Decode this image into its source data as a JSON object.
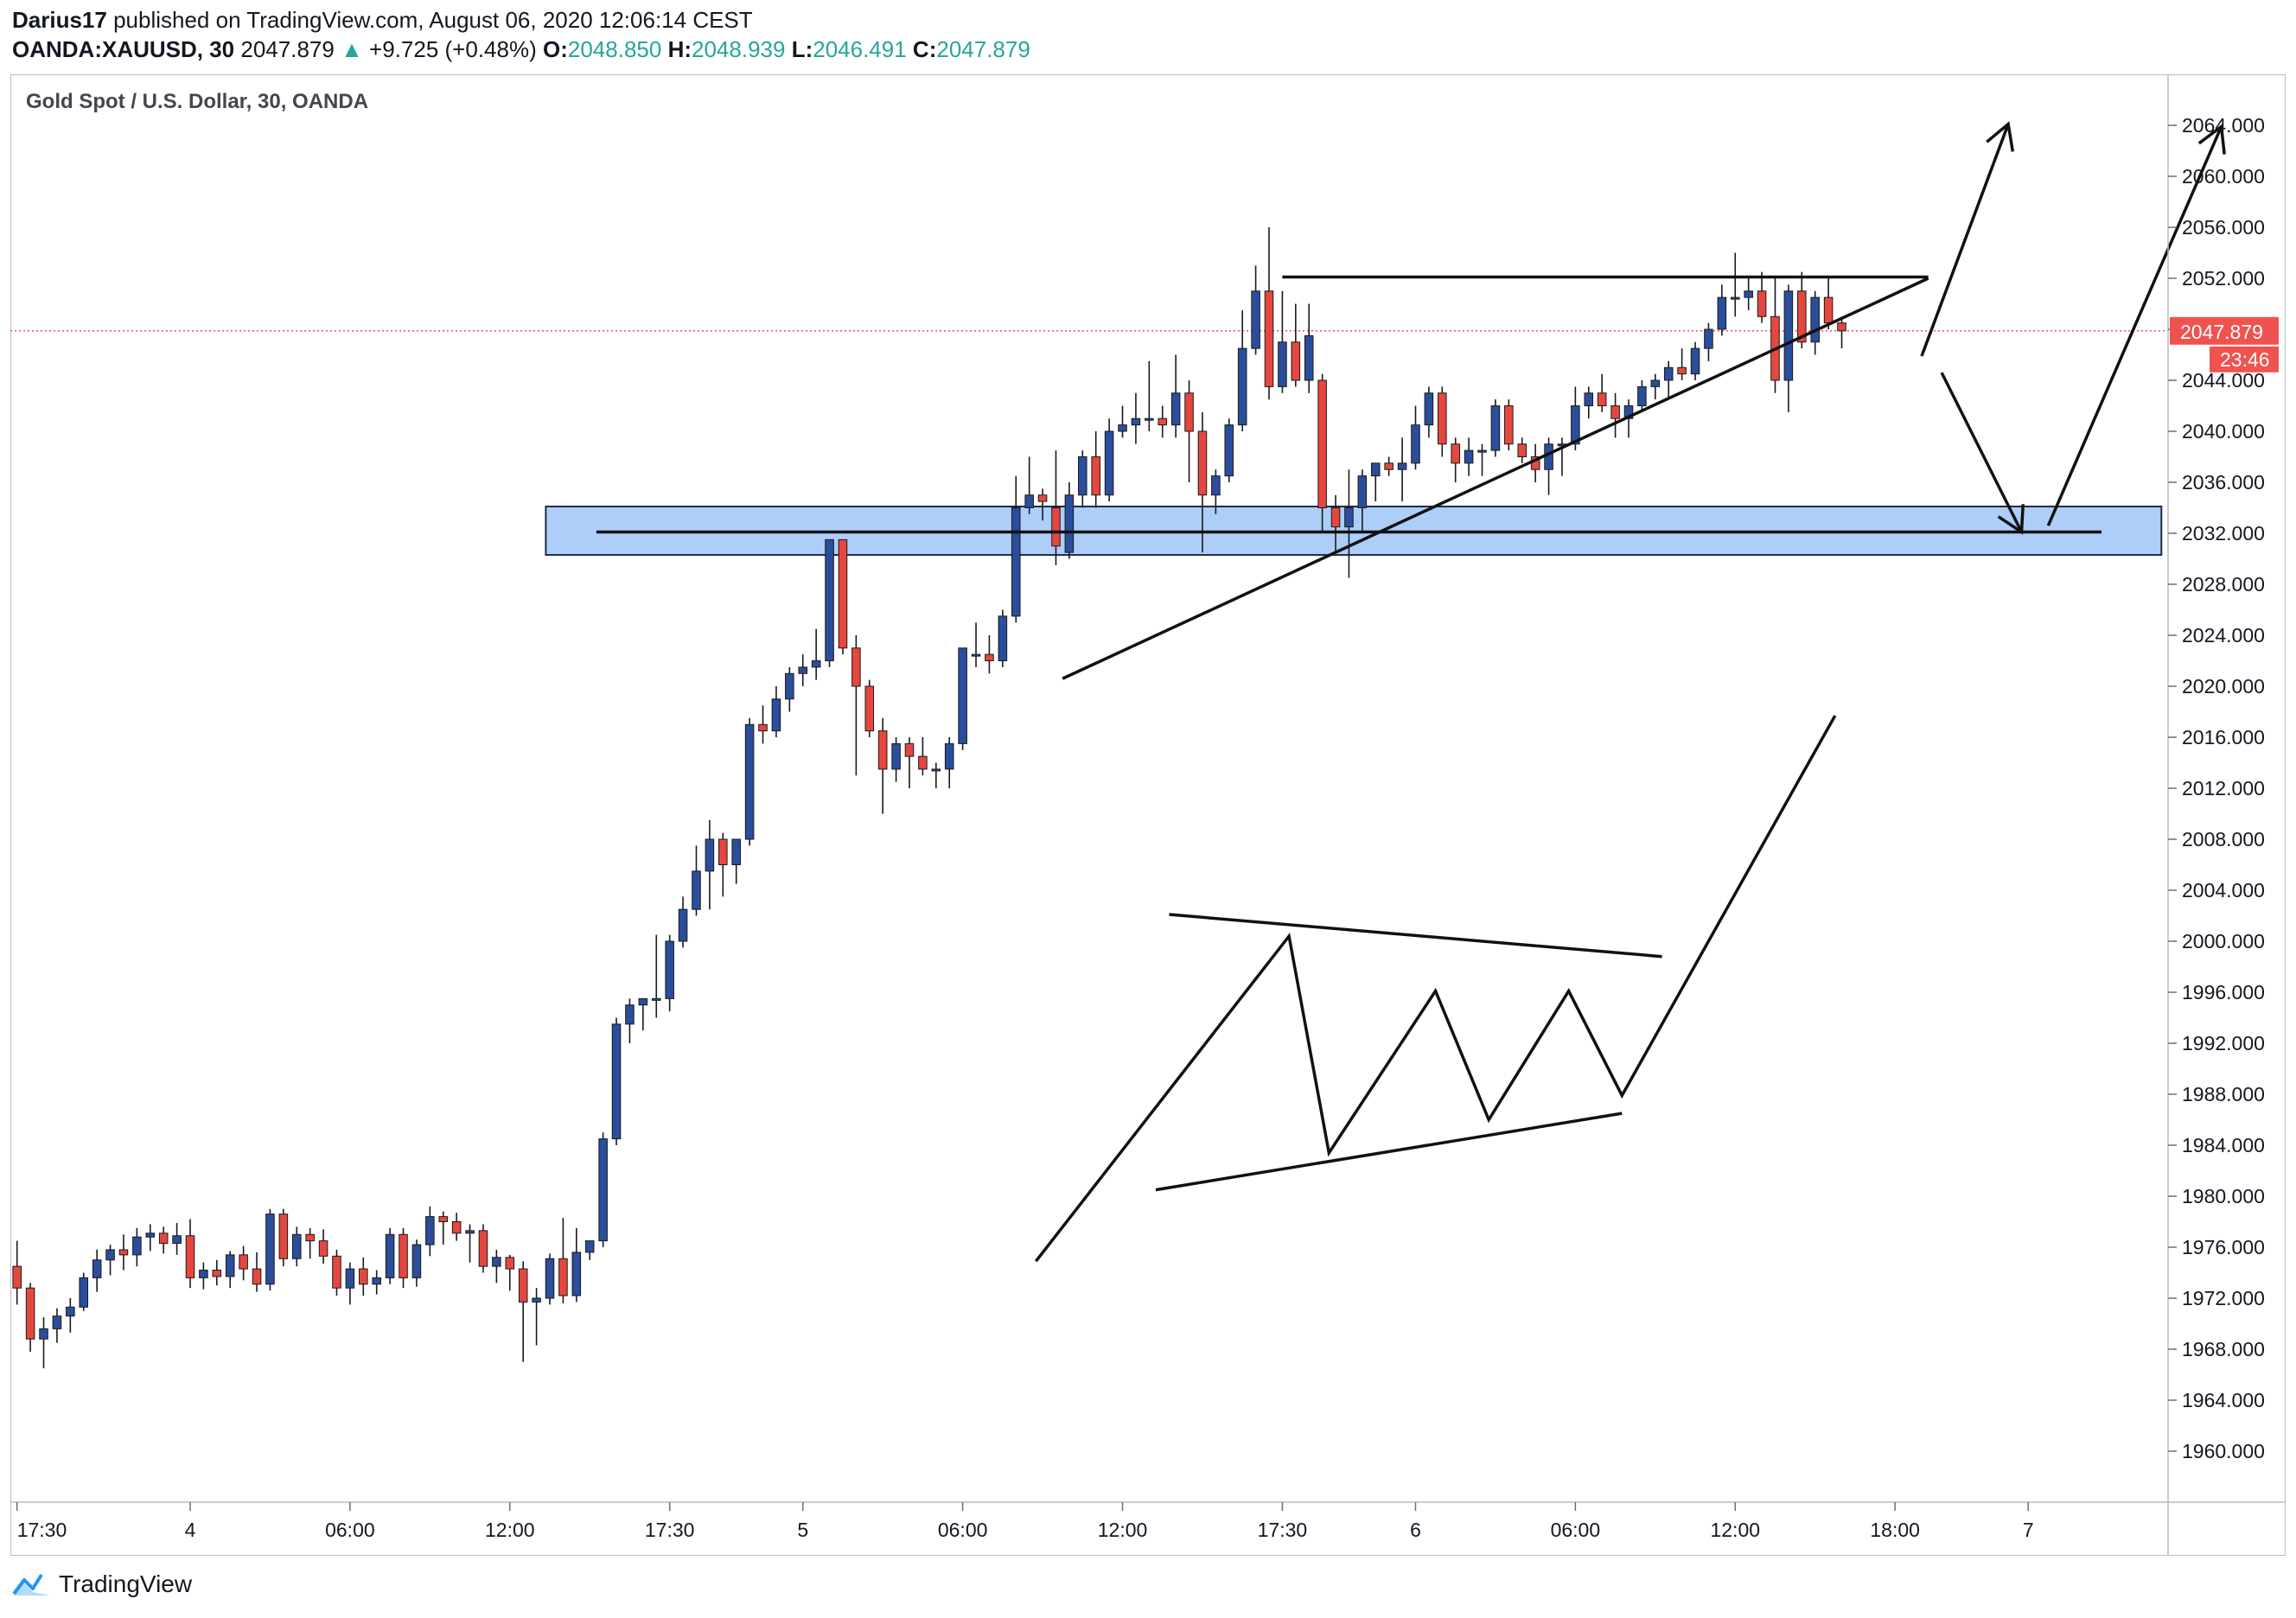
{
  "header": {
    "author": "Darius17",
    "published_text": "published on TradingView.com, August 06, 2020 12:06:14 CEST",
    "symbol": "OANDA:XAUUSD, 30",
    "last": "2047.879",
    "change_arrow": "▲",
    "change": "+9.725 (+0.48%)",
    "o_label": "O:",
    "o_value": "2048.850",
    "h_label": "H:",
    "h_value": "2048.939",
    "l_label": "L:",
    "l_value": "2046.491",
    "c_label": "C:",
    "c_value": "2047.879"
  },
  "footer": {
    "brand": "TradingView",
    "logo_icon": "tradingview-logo-icon"
  },
  "colors": {
    "up": "#2a4e9b",
    "down": "#e5473f",
    "price_badge": "#ef5350",
    "zone_fill": "#9fc5f8",
    "zone_stroke": "#1f2a44",
    "drawing": "#111111",
    "axis_text": "#131722"
  },
  "chart_data": {
    "type": "candlestick",
    "title": "Gold Spot / U.S. Dollar, 30, OANDA",
    "ylim": [
      1956,
      2068
    ],
    "y_ticks": [
      1960,
      1964,
      1968,
      1972,
      1976,
      1980,
      1984,
      1988,
      1992,
      1996,
      2000,
      2004,
      2008,
      2012,
      2016,
      2020,
      2024,
      2028,
      2032,
      2036,
      2040,
      2044,
      2048,
      2052,
      2056,
      2060,
      2064
    ],
    "x_ticks": [
      "17:30",
      "4",
      "06:00",
      "12:00",
      "17:30",
      "5",
      "06:00",
      "12:00",
      "17:30",
      "6",
      "06:00",
      "12:00",
      "18:00",
      "7"
    ],
    "x_tick_index": [
      0,
      13,
      25,
      37,
      49,
      59,
      71,
      83,
      95,
      105,
      117,
      129,
      141,
      151
    ],
    "x_range": [
      -0.5,
      161.5
    ],
    "current_price": "2047.879",
    "countdown": "23:46",
    "ohlc": [
      [
        1974.5,
        1976.5,
        1971.5,
        1972.8
      ],
      [
        1972.8,
        1973.2,
        1967.8,
        1968.8
      ],
      [
        1968.8,
        1970.5,
        1966.5,
        1969.6
      ],
      [
        1969.6,
        1971.2,
        1968.5,
        1970.6
      ],
      [
        1970.6,
        1972.0,
        1969.3,
        1971.3
      ],
      [
        1971.3,
        1974.0,
        1971.0,
        1973.6
      ],
      [
        1973.6,
        1975.8,
        1972.5,
        1975.0
      ],
      [
        1975.0,
        1976.2,
        1973.8,
        1975.8
      ],
      [
        1975.8,
        1977.0,
        1974.2,
        1975.4
      ],
      [
        1975.4,
        1977.5,
        1974.5,
        1976.8
      ],
      [
        1976.8,
        1977.8,
        1975.7,
        1977.1
      ],
      [
        1977.1,
        1977.6,
        1975.5,
        1976.3
      ],
      [
        1976.3,
        1977.9,
        1975.4,
        1976.9
      ],
      [
        1976.9,
        1978.2,
        1972.8,
        1973.6
      ],
      [
        1973.6,
        1974.8,
        1972.7,
        1974.2
      ],
      [
        1974.2,
        1975.0,
        1973.0,
        1973.7
      ],
      [
        1973.7,
        1975.7,
        1972.8,
        1975.4
      ],
      [
        1975.4,
        1976.1,
        1973.4,
        1974.3
      ],
      [
        1974.3,
        1975.6,
        1972.5,
        1973.1
      ],
      [
        1973.1,
        1979.0,
        1972.6,
        1978.6
      ],
      [
        1978.6,
        1979.0,
        1974.5,
        1975.1
      ],
      [
        1975.1,
        1977.6,
        1974.5,
        1977.0
      ],
      [
        1977.0,
        1977.5,
        1975.1,
        1976.5
      ],
      [
        1976.5,
        1977.4,
        1974.7,
        1975.3
      ],
      [
        1975.3,
        1975.8,
        1972.2,
        1972.8
      ],
      [
        1972.8,
        1974.8,
        1971.5,
        1974.3
      ],
      [
        1974.3,
        1975.2,
        1972.2,
        1973.1
      ],
      [
        1973.1,
        1974.2,
        1972.3,
        1973.6
      ],
      [
        1973.6,
        1977.5,
        1973.1,
        1977.0
      ],
      [
        1977.0,
        1977.5,
        1972.8,
        1973.6
      ],
      [
        1973.6,
        1976.6,
        1972.9,
        1976.2
      ],
      [
        1976.2,
        1979.2,
        1975.3,
        1978.4
      ],
      [
        1978.4,
        1978.8,
        1976.2,
        1978.0
      ],
      [
        1978.0,
        1978.7,
        1976.5,
        1977.1
      ],
      [
        1977.1,
        1977.8,
        1974.8,
        1977.3
      ],
      [
        1977.3,
        1977.8,
        1974.0,
        1974.5
      ],
      [
        1974.5,
        1975.8,
        1973.2,
        1975.2
      ],
      [
        1975.2,
        1975.4,
        1972.6,
        1974.3
      ],
      [
        1974.3,
        1974.9,
        1967.0,
        1971.7
      ],
      [
        1971.7,
        1972.8,
        1968.3,
        1972.0
      ],
      [
        1972.0,
        1975.5,
        1971.5,
        1975.1
      ],
      [
        1975.1,
        1978.3,
        1971.6,
        1972.2
      ],
      [
        1972.2,
        1977.5,
        1971.7,
        1975.6
      ],
      [
        1975.6,
        1976.5,
        1975.0,
        1976.5
      ],
      [
        1976.5,
        1985.0,
        1976.0,
        1984.5
      ],
      [
        1984.5,
        1994.0,
        1984.0,
        1993.5
      ],
      [
        1993.5,
        1995.5,
        1992.0,
        1995.0
      ],
      [
        1995.0,
        1995.5,
        1993.0,
        1995.5
      ],
      [
        1995.5,
        2000.5,
        1994.0,
        1995.5
      ],
      [
        1995.5,
        2000.5,
        1994.5,
        2000.0
      ],
      [
        2000.0,
        2003.5,
        1999.5,
        2002.5
      ],
      [
        2002.5,
        2007.5,
        2002.0,
        2005.5
      ],
      [
        2005.5,
        2009.5,
        2002.5,
        2008.0
      ],
      [
        2008.0,
        2008.5,
        2003.5,
        2006.0
      ],
      [
        2006.0,
        2008.0,
        2004.5,
        2008.0
      ],
      [
        2008.0,
        2017.5,
        2007.5,
        2017.0
      ],
      [
        2017.0,
        2018.5,
        2015.5,
        2016.5
      ],
      [
        2016.5,
        2020.0,
        2016.0,
        2019.0
      ],
      [
        2019.0,
        2021.5,
        2018.0,
        2021.0
      ],
      [
        2021.0,
        2022.5,
        2020.0,
        2021.5
      ],
      [
        2021.5,
        2024.5,
        2020.5,
        2022.0
      ],
      [
        2022.0,
        2031.5,
        2021.5,
        2031.5
      ],
      [
        2031.5,
        2031.5,
        2022.5,
        2023.0
      ],
      [
        2023.0,
        2024.0,
        2013.0,
        2020.0
      ],
      [
        2020.0,
        2020.5,
        2016.0,
        2016.5
      ],
      [
        2016.5,
        2017.5,
        2010.0,
        2013.5
      ],
      [
        2013.5,
        2016.0,
        2012.5,
        2015.5
      ],
      [
        2015.5,
        2016.0,
        2012.0,
        2014.5
      ],
      [
        2014.5,
        2016.0,
        2013.0,
        2013.5
      ],
      [
        2013.5,
        2014.0,
        2012.0,
        2013.5
      ],
      [
        2013.5,
        2016.0,
        2012.0,
        2015.5
      ],
      [
        2015.5,
        2023.0,
        2015.0,
        2023.0
      ],
      [
        2022.5,
        2025.0,
        2021.5,
        2022.5
      ],
      [
        2022.5,
        2024.0,
        2021.0,
        2022.0
      ],
      [
        2022.0,
        2026.0,
        2021.5,
        2025.5
      ],
      [
        2025.5,
        2036.5,
        2025.0,
        2034.0
      ],
      [
        2034.0,
        2038.0,
        2033.5,
        2035.0
      ],
      [
        2035.0,
        2035.5,
        2033.0,
        2034.5
      ],
      [
        2034.0,
        2038.5,
        2029.5,
        2031.0
      ],
      [
        2030.5,
        2036.0,
        2030.0,
        2035.0
      ],
      [
        2035.0,
        2038.5,
        2034.0,
        2038.0
      ],
      [
        2038.0,
        2040.0,
        2034.0,
        2035.0
      ],
      [
        2035.0,
        2041.0,
        2034.5,
        2040.0
      ],
      [
        2040.0,
        2042.0,
        2039.5,
        2040.5
      ],
      [
        2040.5,
        2043.0,
        2039.0,
        2041.0
      ],
      [
        2041.0,
        2045.5,
        2040.0,
        2041.0
      ],
      [
        2041.0,
        2042.0,
        2039.5,
        2040.5
      ],
      [
        2040.5,
        2046.0,
        2039.5,
        2043.0
      ],
      [
        2043.0,
        2044.0,
        2036.0,
        2040.0
      ],
      [
        2040.0,
        2041.5,
        2030.5,
        2035.0
      ],
      [
        2035.0,
        2037.0,
        2033.5,
        2036.5
      ],
      [
        2036.5,
        2041.0,
        2036.0,
        2040.5
      ],
      [
        2040.5,
        2049.5,
        2040.0,
        2046.5
      ],
      [
        2046.5,
        2053.0,
        2046.0,
        2051.0
      ],
      [
        2051.0,
        2056.0,
        2042.5,
        2043.5
      ],
      [
        2043.5,
        2051.0,
        2043.0,
        2047.0
      ],
      [
        2047.0,
        2050.0,
        2043.5,
        2044.0
      ],
      [
        2044.0,
        2050.0,
        2043.0,
        2047.5
      ],
      [
        2044.0,
        2044.5,
        2032.0,
        2034.0
      ],
      [
        2034.0,
        2035.0,
        2030.5,
        2032.5
      ],
      [
        2032.5,
        2037.0,
        2028.5,
        2034.0
      ],
      [
        2034.0,
        2037.0,
        2032.0,
        2036.5
      ],
      [
        2036.5,
        2037.5,
        2034.5,
        2037.5
      ],
      [
        2037.5,
        2038.0,
        2036.5,
        2037.0
      ],
      [
        2037.0,
        2039.5,
        2034.5,
        2037.5
      ],
      [
        2037.5,
        2042.0,
        2037.0,
        2040.5
      ],
      [
        2040.5,
        2043.5,
        2039.5,
        2043.0
      ],
      [
        2043.0,
        2043.5,
        2038.0,
        2039.0
      ],
      [
        2039.0,
        2039.5,
        2036.0,
        2037.5
      ],
      [
        2037.5,
        2039.5,
        2036.5,
        2038.5
      ],
      [
        2038.5,
        2039.0,
        2036.5,
        2038.5
      ],
      [
        2038.5,
        2042.5,
        2038.0,
        2042.0
      ],
      [
        2042.0,
        2042.5,
        2038.5,
        2039.0
      ],
      [
        2039.0,
        2039.5,
        2037.5,
        2038.0
      ],
      [
        2038.0,
        2039.0,
        2036.0,
        2037.0
      ],
      [
        2037.0,
        2039.5,
        2035.0,
        2039.0
      ],
      [
        2039.0,
        2039.5,
        2036.5,
        2039.0
      ],
      [
        2039.0,
        2043.5,
        2038.5,
        2042.0
      ],
      [
        2042.0,
        2043.5,
        2041.0,
        2043.0
      ],
      [
        2043.0,
        2044.5,
        2041.5,
        2042.0
      ],
      [
        2042.0,
        2043.0,
        2039.5,
        2041.0
      ],
      [
        2041.0,
        2042.5,
        2039.5,
        2042.0
      ],
      [
        2042.0,
        2044.0,
        2041.5,
        2043.5
      ],
      [
        2043.5,
        2044.5,
        2042.5,
        2044.0
      ],
      [
        2044.0,
        2045.5,
        2042.5,
        2045.0
      ],
      [
        2045.0,
        2046.5,
        2044.0,
        2044.5
      ],
      [
        2044.5,
        2047.0,
        2044.0,
        2046.5
      ],
      [
        2046.5,
        2048.5,
        2045.5,
        2048.0
      ],
      [
        2048.0,
        2051.5,
        2047.5,
        2050.5
      ],
      [
        2050.5,
        2054.0,
        2049.0,
        2050.5
      ],
      [
        2050.5,
        2052.0,
        2049.5,
        2051.0
      ],
      [
        2051.0,
        2052.5,
        2048.5,
        2049.0
      ],
      [
        2049.0,
        2052.0,
        2043.0,
        2044.0
      ],
      [
        2044.0,
        2051.5,
        2041.5,
        2051.0
      ],
      [
        2051.0,
        2052.5,
        2046.5,
        2047.0
      ],
      [
        2047.0,
        2051.0,
        2046.0,
        2050.5
      ],
      [
        2050.5,
        2052.0,
        2048.0,
        2048.5
      ],
      [
        2048.5,
        2049.0,
        2046.5,
        2047.879
      ]
    ],
    "zone": {
      "low": 2030.3,
      "high": 2034.1,
      "i_from": 39.7,
      "i_to": 161.0
    },
    "annotations": [
      {
        "kind": "line",
        "points": [
          [
            95.0,
            2052.1
          ],
          [
            143.5,
            2052.1
          ]
        ]
      },
      {
        "kind": "line",
        "points": [
          [
            43.5,
            2032.1
          ],
          [
            156.5,
            2032.1
          ]
        ]
      },
      {
        "kind": "line",
        "points": [
          [
            78.5,
            2020.6
          ],
          [
            143.5,
            2052.0
          ]
        ]
      },
      {
        "kind": "arrow",
        "points": [
          [
            143.0,
            2045.9
          ],
          [
            149.5,
            2064.1
          ]
        ]
      },
      {
        "kind": "arrow",
        "points": [
          [
            144.5,
            2044.6
          ],
          [
            150.5,
            2032.1
          ]
        ]
      },
      {
        "kind": "arrow",
        "points": [
          [
            152.5,
            2032.6
          ],
          [
            165.5,
            2063.9
          ]
        ]
      },
      {
        "kind": "polyline",
        "points": [
          [
            76.5,
            1974.9
          ],
          [
            95.5,
            2000.4
          ],
          [
            98.5,
            1983.4
          ],
          [
            106.5,
            1996.1
          ],
          [
            110.5,
            1986.0
          ],
          [
            116.5,
            1996.1
          ],
          [
            120.5,
            1987.9
          ],
          [
            136.5,
            2017.7
          ]
        ]
      },
      {
        "kind": "line",
        "points": [
          [
            86.5,
            2002.1
          ],
          [
            123.5,
            1998.8
          ]
        ]
      },
      {
        "kind": "line",
        "points": [
          [
            85.5,
            1980.5
          ],
          [
            120.5,
            1986.5
          ]
        ]
      }
    ]
  }
}
